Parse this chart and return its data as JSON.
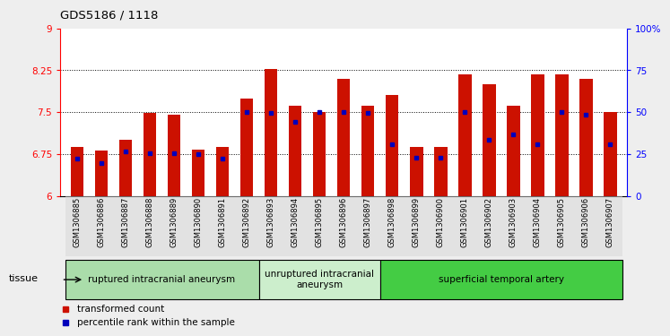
{
  "title": "GDS5186 / 1118",
  "samples": [
    "GSM1306885",
    "GSM1306886",
    "GSM1306887",
    "GSM1306888",
    "GSM1306889",
    "GSM1306890",
    "GSM1306891",
    "GSM1306892",
    "GSM1306893",
    "GSM1306894",
    "GSM1306895",
    "GSM1306896",
    "GSM1306897",
    "GSM1306898",
    "GSM1306899",
    "GSM1306900",
    "GSM1306901",
    "GSM1306902",
    "GSM1306903",
    "GSM1306904",
    "GSM1306905",
    "GSM1306906",
    "GSM1306907"
  ],
  "bar_heights": [
    6.87,
    6.82,
    7.0,
    7.48,
    7.46,
    6.83,
    6.88,
    7.75,
    8.28,
    7.62,
    7.5,
    8.1,
    7.62,
    7.8,
    6.88,
    6.88,
    8.18,
    8.0,
    7.62,
    8.18,
    8.18,
    8.1,
    7.5
  ],
  "percentile_values": [
    6.66,
    6.58,
    6.8,
    6.77,
    6.76,
    6.74,
    6.66,
    7.5,
    7.48,
    7.32,
    7.5,
    7.5,
    7.48,
    6.92,
    6.68,
    6.68,
    7.5,
    7.0,
    7.1,
    6.92,
    7.5,
    7.46,
    6.93
  ],
  "groups": [
    {
      "label": "ruptured intracranial aneurysm",
      "start": 0,
      "end": 8,
      "color": "#aaddaa"
    },
    {
      "label": "unruptured intracranial\naneurysm",
      "start": 8,
      "end": 13,
      "color": "#cceecc"
    },
    {
      "label": "superficial temporal artery",
      "start": 13,
      "end": 23,
      "color": "#44cc44"
    }
  ],
  "bar_color": "#cc1100",
  "marker_color": "#0000bb",
  "ylim_left": [
    6,
    9
  ],
  "ylim_right": [
    0,
    100
  ],
  "yticks_left": [
    6,
    6.75,
    7.5,
    8.25,
    9
  ],
  "ytick_labels_left": [
    "6",
    "6.75",
    "7.5",
    "8.25",
    "9"
  ],
  "yticks_right": [
    0,
    25,
    50,
    75,
    100
  ],
  "ytick_labels_right": [
    "0",
    "25",
    "50",
    "75",
    "100%"
  ],
  "hlines": [
    6.75,
    7.5,
    8.25
  ],
  "background_color": "#eeeeee",
  "plot_bg_color": "#ffffff",
  "tissue_label": "tissue",
  "legend_items": [
    {
      "label": "transformed count",
      "color": "#cc1100"
    },
    {
      "label": "percentile rank within the sample",
      "color": "#0000bb"
    }
  ]
}
